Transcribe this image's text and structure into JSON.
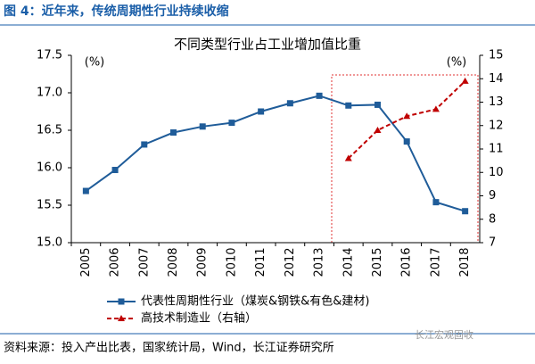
{
  "header": {
    "title": "图 4：近年来，传统周期性行业持续收缩"
  },
  "chart_data": {
    "type": "line",
    "title": "不同类型行业占工业增加值比重",
    "ylabel": "(%)",
    "y2label": "(%)",
    "categories": [
      "2005",
      "2006",
      "2007",
      "2008",
      "2009",
      "2010",
      "2011",
      "2012",
      "2013",
      "2014",
      "2015",
      "2016",
      "2017",
      "2018"
    ],
    "series": [
      {
        "name": "代表性周期性行业（煤炭&钢铁&有色&建材)",
        "color": "#1f5c99",
        "marker": "square",
        "dash": false,
        "values": [
          15.69,
          15.97,
          16.31,
          16.47,
          16.55,
          16.6,
          16.75,
          16.86,
          16.96,
          16.83,
          16.84,
          16.35,
          15.54,
          15.42
        ]
      },
      {
        "name": "高技术制造业（右轴）",
        "color": "#c00000",
        "marker": "triangle",
        "dash": true,
        "axis": "y2",
        "values": [
          null,
          null,
          null,
          null,
          null,
          null,
          null,
          null,
          null,
          10.6,
          11.8,
          12.4,
          12.7,
          13.9
        ]
      }
    ],
    "ylim": [
      15.0,
      17.5
    ],
    "yticks": [
      {
        "value": 15.0,
        "label": "15.0"
      },
      15.5,
      {
        "value": 16.0,
        "label": "16.0"
      },
      16.5,
      {
        "value": 17.0,
        "label": "17.0"
      },
      17.5
    ],
    "y2lim": [
      7,
      15
    ],
    "y2ticks": [
      7,
      8,
      9,
      10,
      11,
      12,
      13,
      14,
      15
    ]
  },
  "footer": {
    "source": "资料来源：投入产出比表，国家统计局，Wind，长江证券研究所",
    "watermark": "长江宏观固收"
  }
}
